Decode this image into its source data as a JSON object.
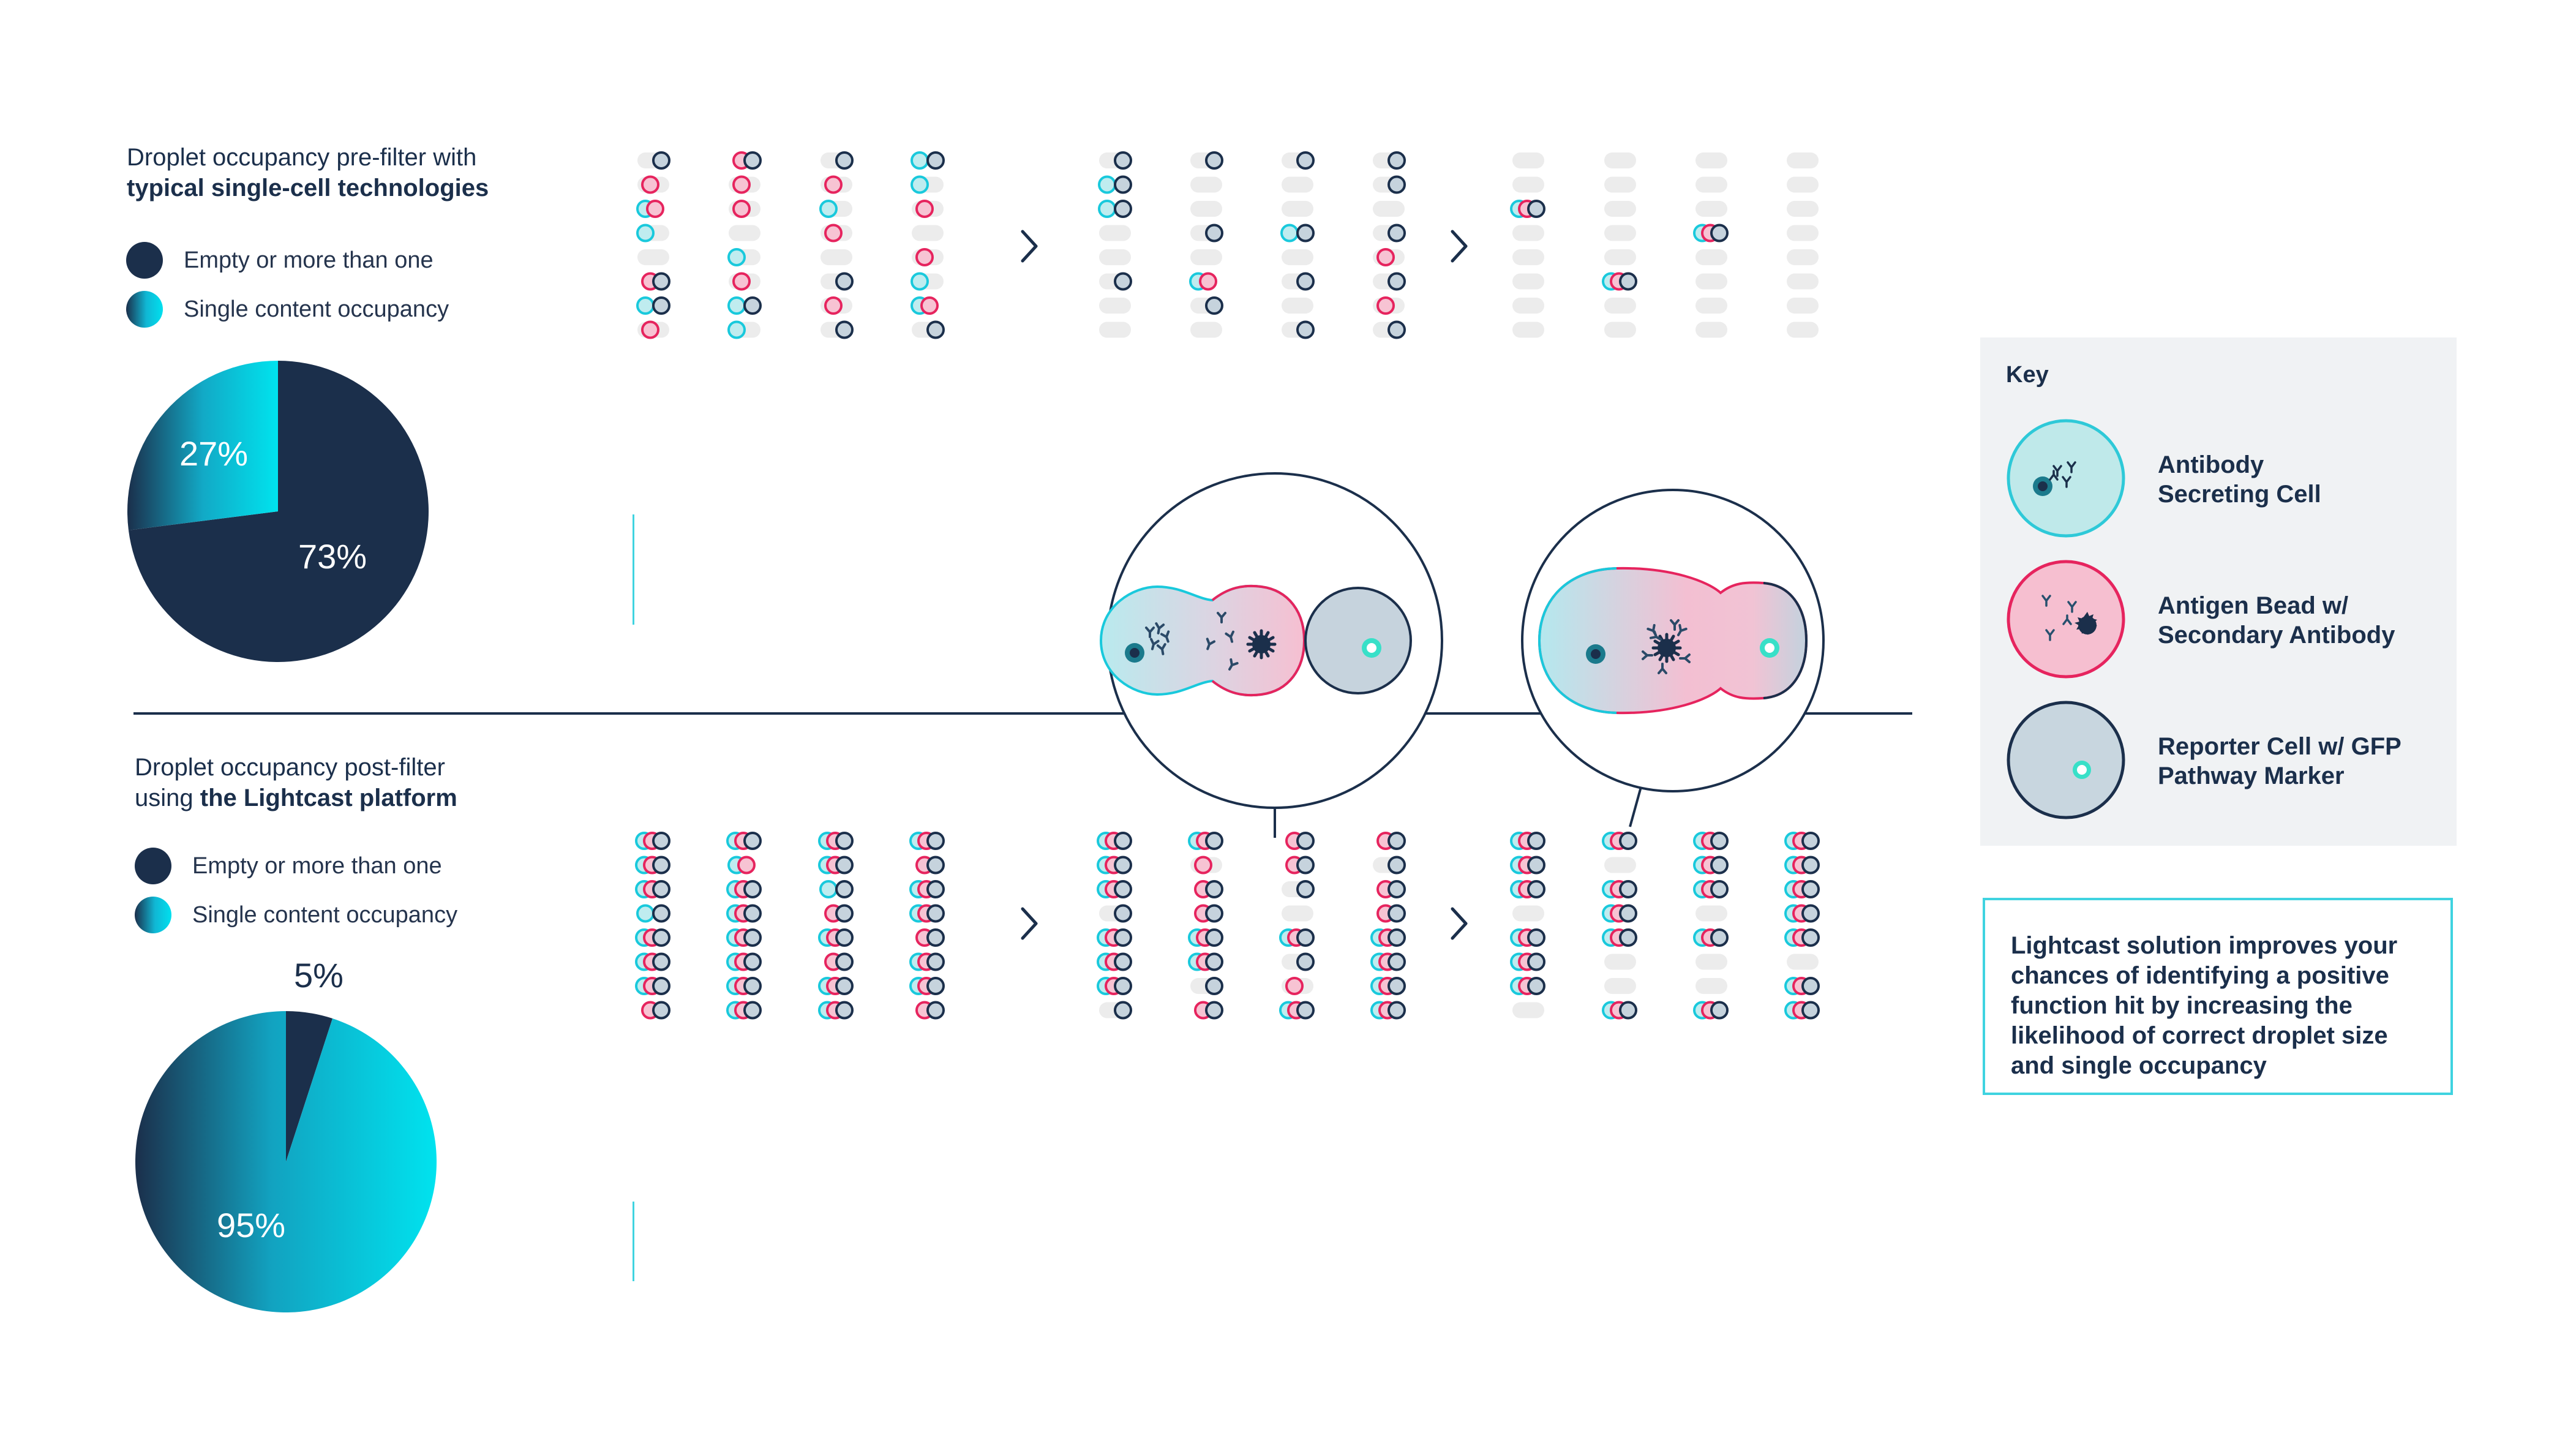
{
  "top_panel": {
    "title_line1": "Droplet occupancy pre-filter with",
    "title_line2": "typical single-cell technologies",
    "legend": [
      {
        "label": "Empty or more than one",
        "color": "#1b2f4b"
      },
      {
        "label": "Single content occupancy",
        "color": "gradient-cyan"
      }
    ],
    "pie": {
      "single_label": "27%",
      "other_label": "73%",
      "single_fraction": 0.27,
      "other_fraction": 0.73
    }
  },
  "bottom_panel": {
    "title_line1": "Droplet occupancy post-filter",
    "title_prefix": "using ",
    "title_bold": "the Lightcast platform",
    "legend": [
      {
        "label": "Empty or more than one",
        "color": "#1b2f4b"
      },
      {
        "label": "Single content occupancy",
        "color": "gradient-cyan"
      }
    ],
    "pie": {
      "other_label": "5%",
      "single_label": "95%",
      "other_fraction": 0.05,
      "single_fraction": 0.95
    }
  },
  "key": {
    "title": "Key",
    "items": [
      {
        "line1": "Antibody",
        "line2": "Secreting Cell",
        "icon": "antibody-secreting-cell-icon"
      },
      {
        "line1": "Antigen Bead w/",
        "line2": "Secondary Antibody",
        "icon": "antigen-bead-icon"
      },
      {
        "line1": "Reporter Cell w/ GFP",
        "line2": "Pathway Marker",
        "icon": "reporter-cell-icon"
      }
    ]
  },
  "callout": {
    "text": "Lightcast solution improves your chances of identifying a positive function hit by increasing the likelihood of correct droplet size and single occupancy"
  },
  "colors": {
    "navy": "#1b2f4b",
    "cyan": "#19c9dc",
    "pink": "#e6245e",
    "empty_droplet": "#ececec"
  }
}
